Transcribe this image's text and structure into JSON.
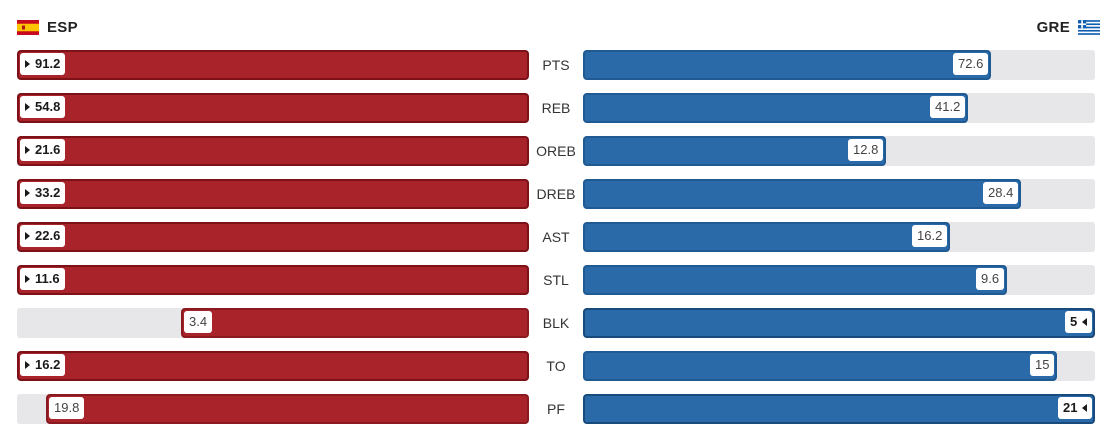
{
  "teams": {
    "left": {
      "code": "ESP",
      "flag_icon": "spain-flag-icon",
      "color": "#a8232a"
    },
    "right": {
      "code": "GRE",
      "flag_icon": "greece-flag-icon",
      "color": "#2a6aa8"
    }
  },
  "chart_data": {
    "type": "bar",
    "orientation": "horizontal-diverging",
    "categories": [
      "PTS",
      "REB",
      "OREB",
      "DREB",
      "AST",
      "STL",
      "BLK",
      "TO",
      "PF"
    ],
    "series": [
      {
        "name": "ESP",
        "values": [
          91.2,
          54.8,
          21.6,
          33.2,
          22.6,
          11.6,
          3.4,
          16.2,
          19.8
        ]
      },
      {
        "name": "GRE",
        "values": [
          72.6,
          41.2,
          12.8,
          28.4,
          16.2,
          9.6,
          5,
          15,
          21
        ]
      }
    ],
    "labels": {
      "ESP": [
        "91.2",
        "54.8",
        "21.6",
        "33.2",
        "22.6",
        "11.6",
        "3.4",
        "16.2",
        "19.8"
      ],
      "GRE": [
        "72.6",
        "41.2",
        "12.8",
        "28.4",
        "16.2",
        "9.6",
        "5",
        "15",
        "21"
      ]
    },
    "title": "",
    "xlabel": "",
    "ylabel": "",
    "grid": false
  }
}
